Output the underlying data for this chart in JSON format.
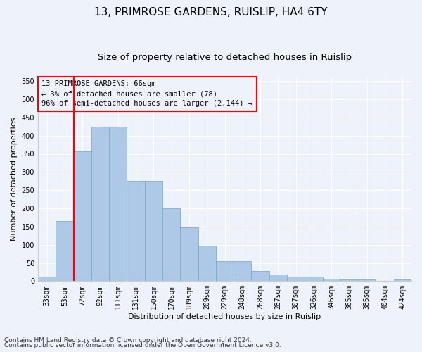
{
  "title_line1": "13, PRIMROSE GARDENS, RUISLIP, HA4 6TY",
  "title_line2": "Size of property relative to detached houses in Ruislip",
  "xlabel": "Distribution of detached houses by size in Ruislip",
  "ylabel": "Number of detached properties",
  "categories": [
    "33sqm",
    "53sqm",
    "72sqm",
    "92sqm",
    "111sqm",
    "131sqm",
    "150sqm",
    "170sqm",
    "189sqm",
    "209sqm",
    "229sqm",
    "248sqm",
    "268sqm",
    "287sqm",
    "307sqm",
    "326sqm",
    "346sqm",
    "365sqm",
    "385sqm",
    "404sqm",
    "424sqm"
  ],
  "values": [
    13,
    165,
    357,
    425,
    425,
    275,
    275,
    200,
    148,
    97,
    55,
    55,
    27,
    18,
    12,
    12,
    6,
    5,
    5,
    1,
    5
  ],
  "bar_color": "#aec9e8",
  "bar_edge_color": "#7aafd4",
  "marker_label_line1": "13 PRIMROSE GARDENS: 66sqm",
  "marker_label_line2": "← 3% of detached houses are smaller (78)",
  "marker_label_line3": "96% of semi-detached houses are larger (2,144) →",
  "vline_color": "red",
  "box_edge_color": "red",
  "ylim": [
    0,
    560
  ],
  "yticks": [
    0,
    50,
    100,
    150,
    200,
    250,
    300,
    350,
    400,
    450,
    500,
    550
  ],
  "footnote_line1": "Contains HM Land Registry data © Crown copyright and database right 2024.",
  "footnote_line2": "Contains public sector information licensed under the Open Government Licence v3.0.",
  "background_color": "#eef2fb",
  "grid_color": "#ffffff",
  "title1_fontsize": 11,
  "title2_fontsize": 9.5,
  "axis_label_fontsize": 8,
  "tick_fontsize": 7,
  "annotation_fontsize": 7.5,
  "footnote_fontsize": 6.5
}
